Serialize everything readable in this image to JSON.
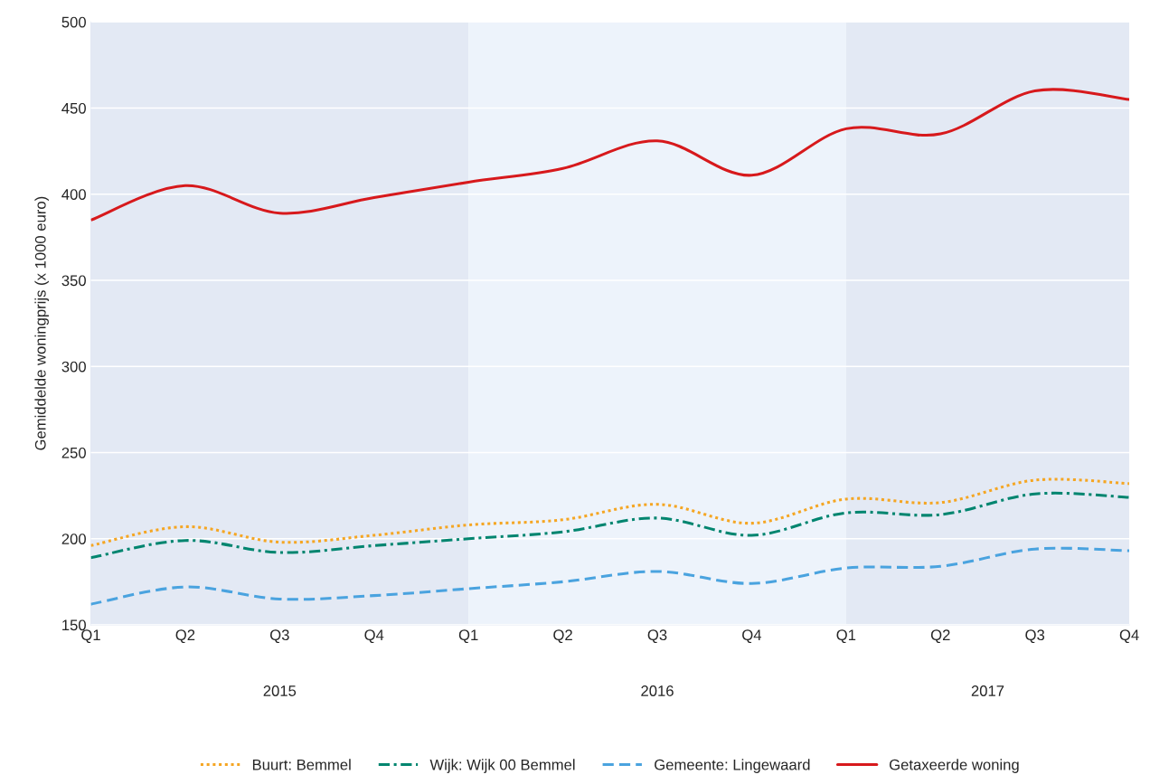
{
  "chart_data": {
    "type": "line",
    "ylabel": "Gemiddelde woningprijs (x 1000 euro)",
    "categories": [
      "Q1",
      "Q2",
      "Q3",
      "Q4",
      "Q1",
      "Q2",
      "Q3",
      "Q4",
      "Q1",
      "Q2",
      "Q3",
      "Q4"
    ],
    "series": [
      {
        "name": "Buurt: Bemmel",
        "color": "#f5a623",
        "line_style": "dotted",
        "values": [
          196,
          207,
          198,
          202,
          208,
          211,
          220,
          209,
          223,
          221,
          234,
          232
        ]
      },
      {
        "name": "Wijk: Wijk 00 Bemmel",
        "color": "#00856f",
        "line_style": "dashdot",
        "values": [
          189,
          199,
          192,
          196,
          200,
          204,
          212,
          202,
          215,
          214,
          226,
          224
        ]
      },
      {
        "name": "Gemeente: Lingewaard",
        "color": "#4aa3df",
        "line_style": "dashed",
        "values": [
          162,
          172,
          165,
          167,
          171,
          175,
          181,
          174,
          183,
          184,
          194,
          193
        ]
      },
      {
        "name": "Getaxeerde woning",
        "color": "#d7191c",
        "line_style": "solid",
        "values": [
          385,
          405,
          389,
          398,
          407,
          415,
          431,
          411,
          438,
          435,
          460,
          455
        ]
      }
    ],
    "ylim": [
      150,
      500
    ],
    "yticks": [
      150,
      200,
      250,
      300,
      350,
      400,
      450,
      500
    ],
    "annotations": [
      "2015",
      "2016",
      "2017"
    ],
    "grid": "y",
    "legend": "bottom",
    "marker": "none"
  }
}
